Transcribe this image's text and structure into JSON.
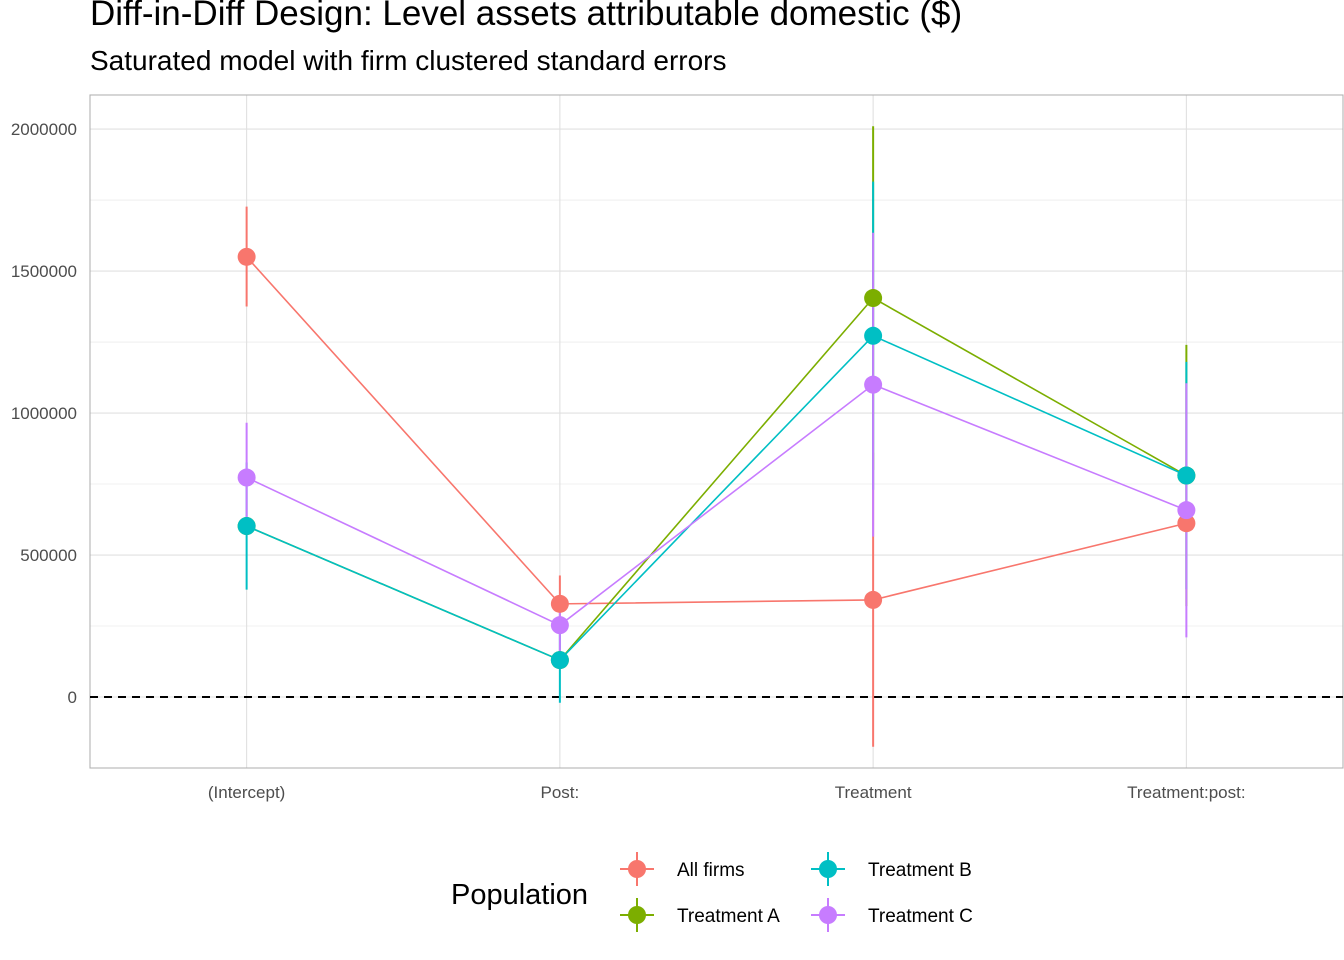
{
  "chart_data": {
    "type": "scatter",
    "title": "Diff-in-Diff Design: Level assets attributable domestic  ($)",
    "subtitle": "Saturated model with firm clustered standard errors",
    "xlabel": "",
    "ylabel": "",
    "categories": [
      "(Intercept)",
      "Post:",
      "Treatment",
      "Treatment:post:"
    ],
    "ylim": [
      -250000,
      2120000
    ],
    "y_ticks": [
      0,
      500000,
      1000000,
      1500000,
      2000000
    ],
    "y_tick_labels": [
      "0",
      "500000",
      "1000000",
      "1500000",
      "2000000"
    ],
    "reference_line": {
      "y": 0,
      "style": "dashed"
    },
    "grid": true,
    "legend": {
      "title": "Population",
      "position": "bottom"
    },
    "series": [
      {
        "name": "All firms",
        "color": "#F8766D",
        "values": [
          1550000,
          328000,
          342000,
          612000
        ],
        "lower": [
          1375000,
          228000,
          -175000,
          612000
        ],
        "upper": [
          1727000,
          428000,
          860000,
          612000
        ]
      },
      {
        "name": "Treatment A",
        "color": "#7CAE00",
        "values": [
          602000,
          130000,
          1405000,
          780000
        ],
        "lower": [
          602000,
          130000,
          800000,
          320000
        ],
        "upper": [
          602000,
          130000,
          2010000,
          1240000
        ]
      },
      {
        "name": "Treatment B",
        "color": "#00BFC4",
        "values": [
          602000,
          130000,
          1272000,
          780000
        ],
        "lower": [
          378000,
          -20000,
          730000,
          380000
        ],
        "upper": [
          826000,
          280000,
          1815000,
          1180000
        ]
      },
      {
        "name": "Treatment C",
        "color": "#C77CFF",
        "values": [
          773000,
          253000,
          1100000,
          658000
        ],
        "lower": [
          580000,
          150000,
          565000,
          210000
        ],
        "upper": [
          966000,
          356000,
          1635000,
          1105000
        ]
      }
    ]
  }
}
